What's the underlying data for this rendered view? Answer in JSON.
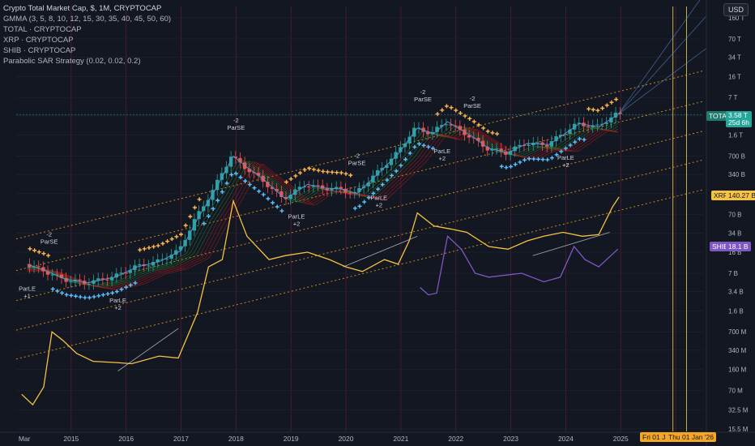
{
  "header": {
    "title": "Crypto Total Market Cap, $, 1M, CRYPTOCAP",
    "indicators": [
      "GMMA (3, 5, 8, 10, 12, 15, 30, 35, 40, 45, 50, 60)",
      "TOTAL · CRYPTOCAP",
      "XRP · CRYPTOCAP",
      "SHIB · CRYPTOCAP",
      "Parabolic SAR Strategy (0.02, 0.02, 0.2)"
    ],
    "currency_button": "USD"
  },
  "price_badges": {
    "total": {
      "label": "TOTAL",
      "value": "3.58 T",
      "sub": "25d 6h",
      "color": "#26a69a"
    },
    "xrp": {
      "label": "XRP",
      "value": "140.27 B",
      "color": "#f5c242"
    },
    "shib": {
      "label": "SHIB",
      "value": "18.1 B",
      "color": "#7e57c2"
    }
  },
  "bottom_labels": {
    "highlight_1": "Fri 01 Ja",
    "highlight_2": "Thu 01 Jan '26"
  },
  "annotations": [
    {
      "lines": [
        "-2",
        "ParSE"
      ],
      "year": 2014.6,
      "type": "se"
    },
    {
      "lines": [
        "ParLE",
        "+1"
      ],
      "year": 2014.2,
      "type": "le"
    },
    {
      "lines": [
        "ParLE",
        "+2"
      ],
      "year": 2015.85,
      "type": "le"
    },
    {
      "lines": [
        "-2",
        "ParSE"
      ],
      "year": 2018.0,
      "type": "se"
    },
    {
      "lines": [
        "ParLE",
        "+2"
      ],
      "year": 2019.1,
      "type": "le"
    },
    {
      "lines": [
        "-2",
        "ParSE"
      ],
      "year": 2020.2,
      "type": "se"
    },
    {
      "lines": [
        "ParLE",
        "+2"
      ],
      "year": 2020.6,
      "type": "le"
    },
    {
      "lines": [
        "-2",
        "ParSE"
      ],
      "year": 2021.4,
      "type": "se"
    },
    {
      "lines": [
        "ParLE",
        "+2"
      ],
      "year": 2021.75,
      "type": "le"
    },
    {
      "lines": [
        "-2",
        "ParSE"
      ],
      "year": 2022.3,
      "type": "se"
    },
    {
      "lines": [
        "ParLE",
        "+2"
      ],
      "year": 2024.0,
      "type": "le"
    }
  ],
  "colors": {
    "background": "#131722",
    "up": "#26a69a",
    "down": "#ef5350",
    "xrp": "#f5c242",
    "shib": "#7e57c2",
    "total_line": "#5b8fd6",
    "channel": "#f5a623",
    "sar": "#5bc0ff",
    "year_line": "#8a1f3d"
  },
  "chart_data": {
    "type": "candlestick",
    "title": "Crypto Total Market Cap, $, 1M, CRYPTOCAP",
    "y_scale": "log",
    "x_tick_labels": [
      "Mar",
      "2015",
      "2016",
      "2017",
      "2018",
      "2019",
      "2020",
      "2021",
      "2022",
      "2023",
      "2024",
      "2025"
    ],
    "y_tick_labels": [
      "160 T",
      "70 T",
      "34 T",
      "16 T",
      "7 T",
      "3.4 T",
      "1.6 T",
      "700 B",
      "340 B",
      "160 B",
      "70 B",
      "34 B",
      "16 B",
      "7 B",
      "3.4 B",
      "1.6 B",
      "700 M",
      "340 M",
      "160 M",
      "70 M",
      "32.5 M",
      "15.5 M"
    ],
    "y_range": [
      "15.5 M",
      "200 T"
    ],
    "series": [
      {
        "name": "TOTAL",
        "points": [
          [
            2014.2,
            10000000000.0
          ],
          [
            2014.5,
            8000000000.0
          ],
          [
            2014.9,
            5500000000.0
          ],
          [
            2015.3,
            4800000000.0
          ],
          [
            2015.8,
            6000000000.0
          ],
          [
            2016.2,
            9000000000.0
          ],
          [
            2016.6,
            11000000000.0
          ],
          [
            2017.0,
            17000000000.0
          ],
          [
            2017.3,
            60000000000.0
          ],
          [
            2017.6,
            170000000000.0
          ],
          [
            2017.95,
            700000000000.0
          ],
          [
            2018.2,
            450000000000.0
          ],
          [
            2018.5,
            280000000000.0
          ],
          [
            2018.9,
            130000000000.0
          ],
          [
            2019.3,
            230000000000.0
          ],
          [
            2019.6,
            200000000000.0
          ],
          [
            2019.95,
            190000000000.0
          ],
          [
            2020.2,
            160000000000.0
          ],
          [
            2020.6,
            360000000000.0
          ],
          [
            2020.95,
            760000000000.0
          ],
          [
            2021.3,
            2100000000000.0
          ],
          [
            2021.6,
            1700000000000.0
          ],
          [
            2021.85,
            2700000000000.0
          ],
          [
            2022.3,
            1500000000000.0
          ],
          [
            2022.6,
            950000000000.0
          ],
          [
            2022.95,
            800000000000.0
          ],
          [
            2023.3,
            1150000000000.0
          ],
          [
            2023.7,
            1100000000000.0
          ],
          [
            2023.95,
            1600000000000.0
          ],
          [
            2024.25,
            2500000000000.0
          ],
          [
            2024.6,
            2200000000000.0
          ],
          [
            2024.95,
            3580000000000.0
          ]
        ]
      },
      {
        "name": "XRP",
        "points": [
          [
            2014.1,
            60000000.0
          ],
          [
            2014.3,
            40000000.0
          ],
          [
            2014.5,
            80000000.0
          ],
          [
            2014.65,
            700000000.0
          ],
          [
            2014.85,
            500000000.0
          ],
          [
            2015.1,
            300000000.0
          ],
          [
            2015.4,
            220000000.0
          ],
          [
            2015.8,
            210000000.0
          ],
          [
            2016.1,
            200000000.0
          ],
          [
            2016.6,
            270000000.0
          ],
          [
            2016.95,
            250000000.0
          ],
          [
            2017.3,
            1500000000.0
          ],
          [
            2017.5,
            9000000000.0
          ],
          [
            2017.75,
            12000000000.0
          ],
          [
            2017.95,
            120000000000.0
          ],
          [
            2018.2,
            30000000000.0
          ],
          [
            2018.6,
            12000000000.0
          ],
          [
            2018.9,
            14000000000.0
          ],
          [
            2019.3,
            16000000000.0
          ],
          [
            2019.7,
            12000000000.0
          ],
          [
            2020.0,
            9000000000.0
          ],
          [
            2020.3,
            7500000000.0
          ],
          [
            2020.7,
            12000000000.0
          ],
          [
            2020.95,
            10000000000.0
          ],
          [
            2021.15,
            25000000000.0
          ],
          [
            2021.3,
            75000000000.0
          ],
          [
            2021.6,
            45000000000.0
          ],
          [
            2021.9,
            40000000000.0
          ],
          [
            2022.2,
            35000000000.0
          ],
          [
            2022.6,
            20000000000.0
          ],
          [
            2022.95,
            18000000000.0
          ],
          [
            2023.3,
            25000000000.0
          ],
          [
            2023.6,
            30000000000.0
          ],
          [
            2023.95,
            35000000000.0
          ],
          [
            2024.3,
            30000000000.0
          ],
          [
            2024.6,
            32000000000.0
          ],
          [
            2024.85,
            95000000000.0
          ],
          [
            2024.97,
            140270000000.0
          ]
        ]
      },
      {
        "name": "SHIB",
        "points": [
          [
            2021.35,
            4000000000.0
          ],
          [
            2021.5,
            3000000000.0
          ],
          [
            2021.65,
            3200000000.0
          ],
          [
            2021.85,
            30000000000.0
          ],
          [
            2022.1,
            18000000000.0
          ],
          [
            2022.35,
            7000000000.0
          ],
          [
            2022.6,
            6000000000.0
          ],
          [
            2022.9,
            6500000000.0
          ],
          [
            2023.2,
            7000000000.0
          ],
          [
            2023.6,
            5000000000.0
          ],
          [
            2023.9,
            6000000000.0
          ],
          [
            2024.15,
            20000000000.0
          ],
          [
            2024.35,
            12000000000.0
          ],
          [
            2024.6,
            9000000000.0
          ],
          [
            2024.95,
            18100000000.0
          ]
        ]
      }
    ],
    "annotations": [
      "ParSE -2",
      "ParLE +1",
      "ParLE +2"
    ]
  }
}
